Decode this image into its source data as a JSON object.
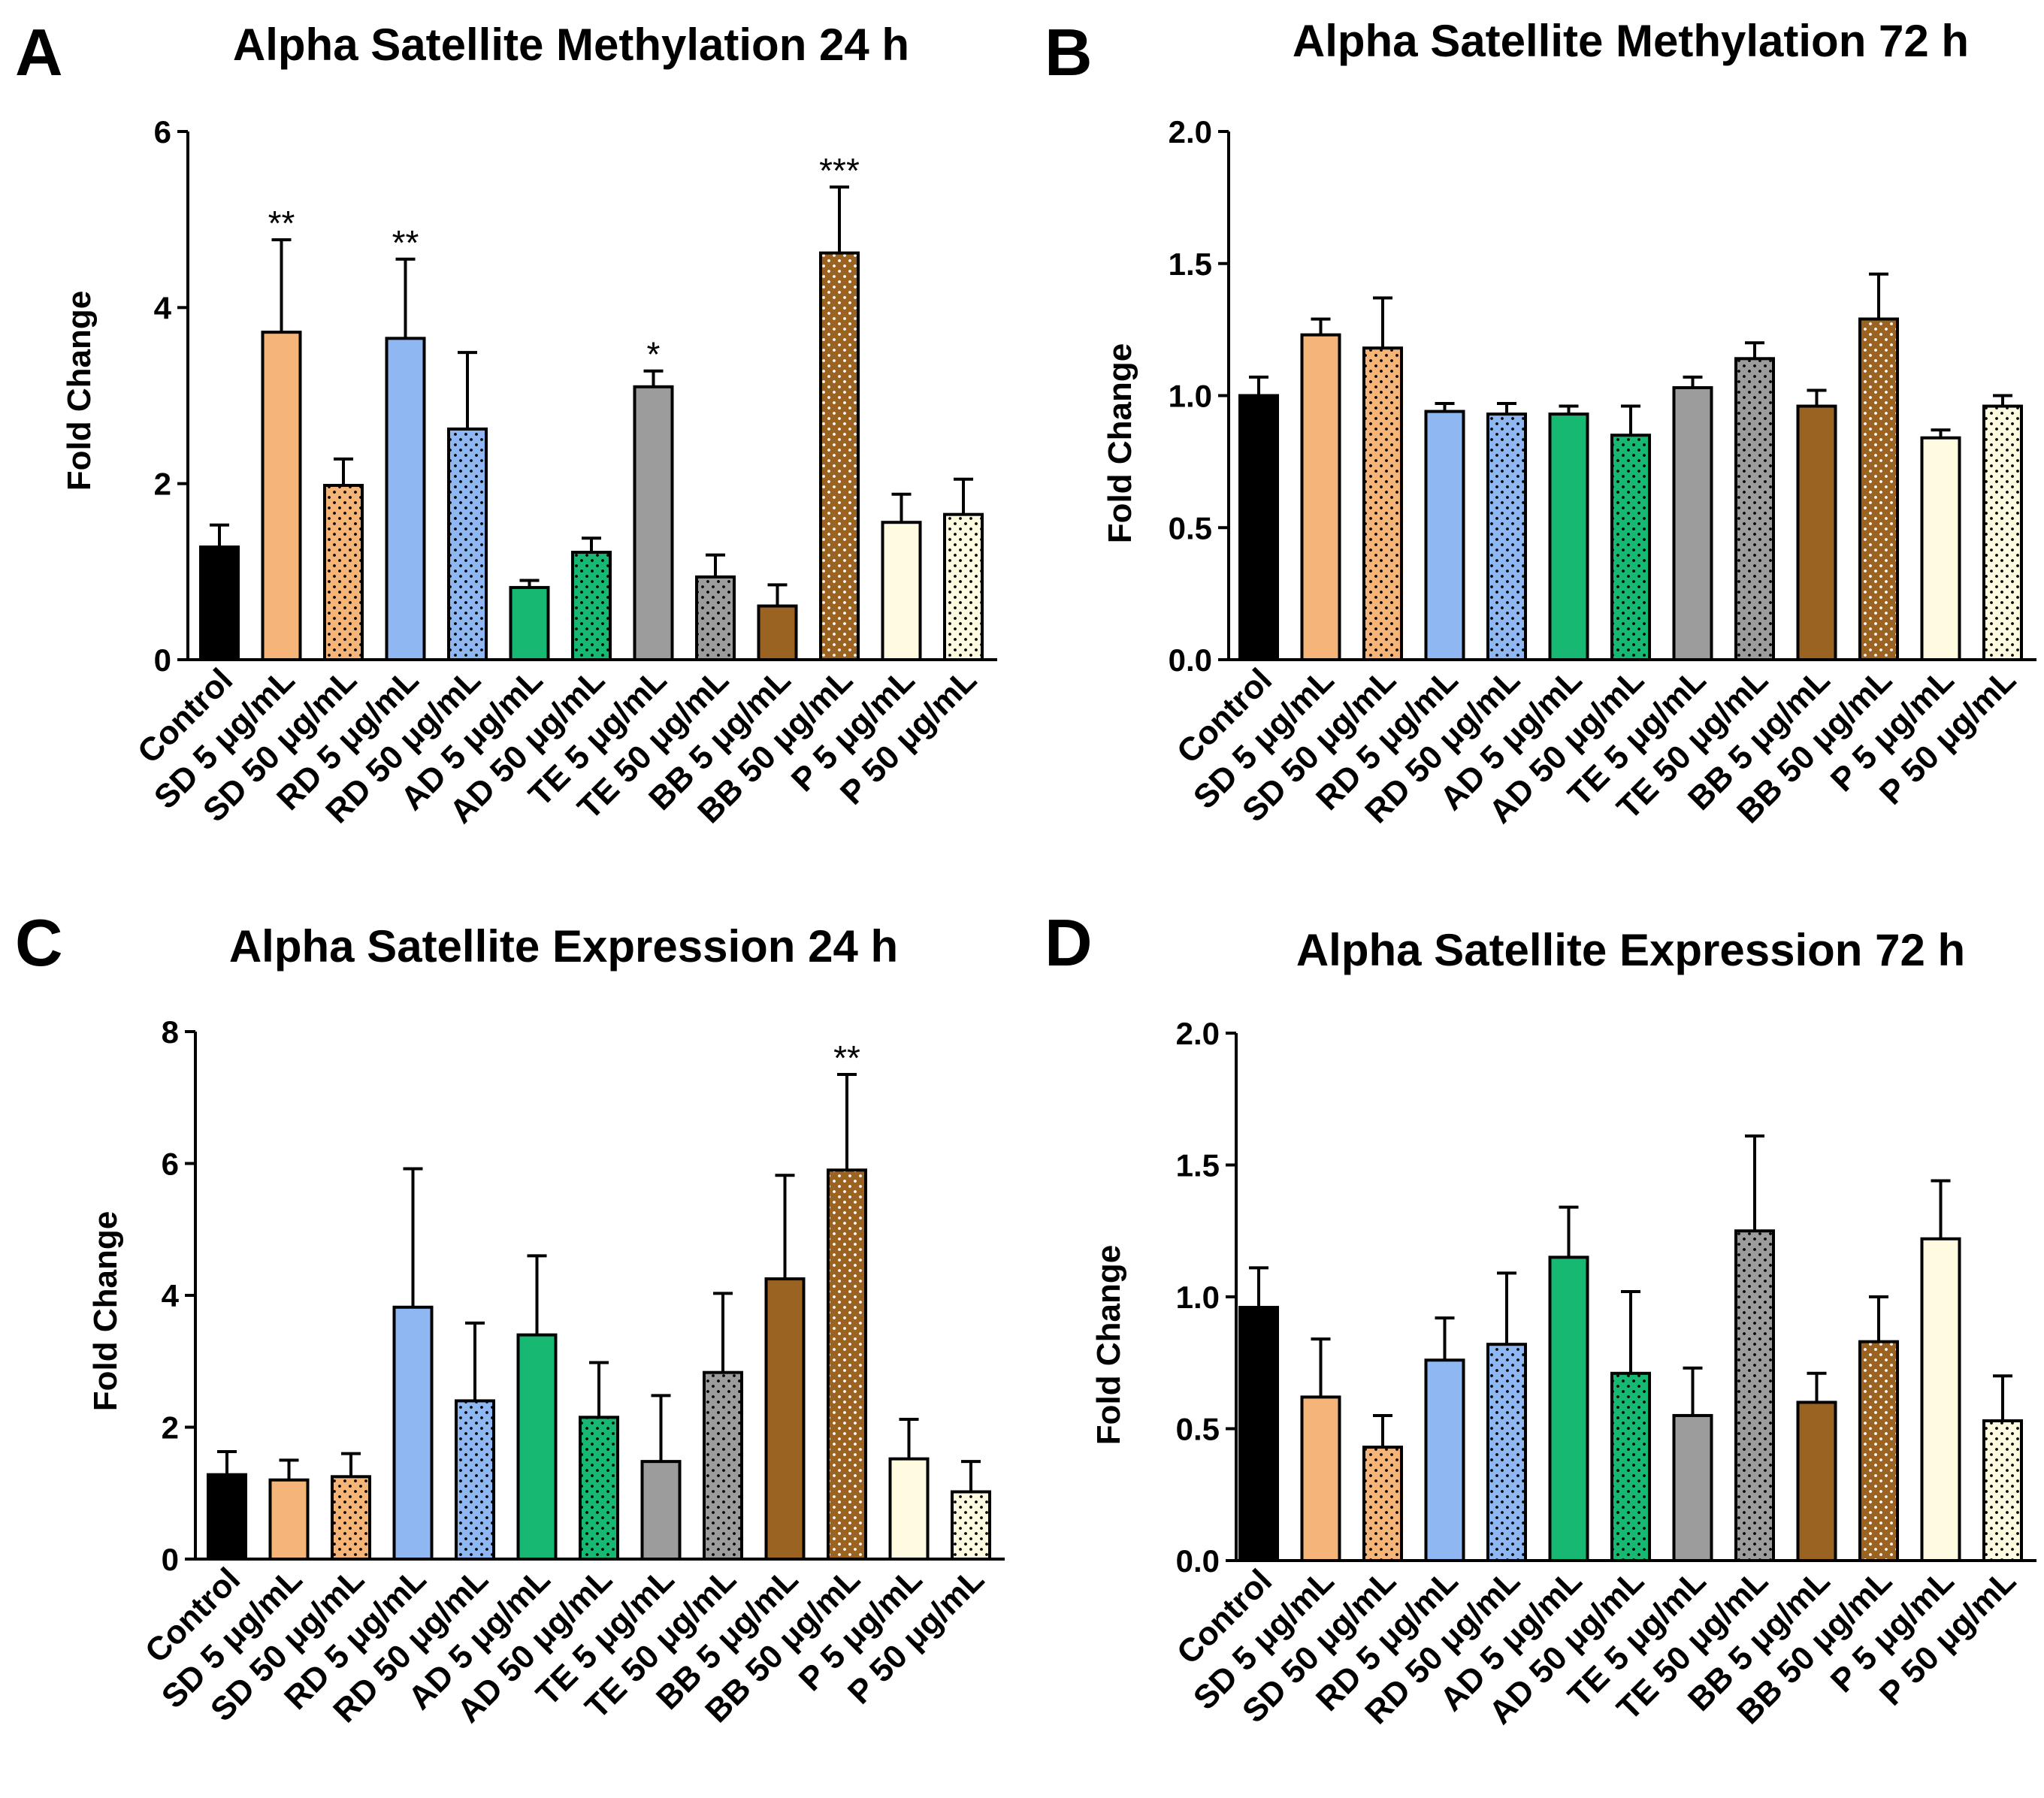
{
  "colors": {
    "Control": "#000000",
    "SD": "#f5b478",
    "RD": "#8fb8f3",
    "AD": "#16b872",
    "TE": "#9c9c9c",
    "BB": "#9a6322",
    "P": "#fffbe0"
  },
  "chart_data": [
    {
      "letter": "A",
      "type": "bar",
      "title": "Alpha Satellite Methylation 24 h",
      "ylabel": "Fold Change",
      "ylim": [
        0,
        6
      ],
      "yticks": [
        "0",
        "2",
        "4",
        "6"
      ],
      "categories": [
        "Control",
        "SD 5 μg/mL",
        "SD 50 μg/mL",
        "RD 5 μg/mL",
        "RD 50 μg/mL",
        "AD 5 μg/mL",
        "AD 50 μg/mL",
        "TE 5 μg/mL",
        "TE 50 μg/mL",
        "BB 5 μg/mL",
        "BB 50 μg/mL",
        "P 5 μg/mL",
        "P 50 μg/mL"
      ],
      "groups": [
        "Control",
        "SD",
        "SD",
        "RD",
        "RD",
        "AD",
        "AD",
        "TE",
        "TE",
        "BB",
        "BB",
        "P",
        "P"
      ],
      "dotted": [
        false,
        false,
        true,
        false,
        true,
        false,
        true,
        false,
        true,
        false,
        true,
        false,
        true
      ],
      "values": [
        1.28,
        3.72,
        1.98,
        3.65,
        2.62,
        0.82,
        1.22,
        3.1,
        0.94,
        0.61,
        4.62,
        1.56,
        1.65
      ],
      "errors": [
        0.25,
        1.05,
        0.3,
        0.9,
        0.87,
        0.08,
        0.16,
        0.18,
        0.25,
        0.24,
        0.75,
        0.32,
        0.4
      ],
      "significance": [
        "",
        "**",
        "",
        "**",
        "",
        "",
        "",
        "*",
        "",
        "",
        "***",
        "",
        ""
      ]
    },
    {
      "letter": "B",
      "type": "bar",
      "title": "Alpha Satellite Methylation 72 h",
      "ylabel": "Fold Change",
      "ylim": [
        0,
        2
      ],
      "yticks": [
        "0.0",
        "0.5",
        "1.0",
        "1.5",
        "2.0"
      ],
      "categories": [
        "Control",
        "SD 5 μg/mL",
        "SD 50 μg/mL",
        "RD 5 μg/mL",
        "RD 50 μg/mL",
        "AD 5 μg/mL",
        "AD 50 μg/mL",
        "TE 5 μg/mL",
        "TE 50 μg/mL",
        "BB 5 μg/mL",
        "BB 50 μg/mL",
        "P 5 μg/mL",
        "P 50 μg/mL"
      ],
      "groups": [
        "Control",
        "SD",
        "SD",
        "RD",
        "RD",
        "AD",
        "AD",
        "TE",
        "TE",
        "BB",
        "BB",
        "P",
        "P"
      ],
      "dotted": [
        false,
        false,
        true,
        false,
        true,
        false,
        true,
        false,
        true,
        false,
        true,
        false,
        true
      ],
      "values": [
        1.0,
        1.23,
        1.18,
        0.94,
        0.93,
        0.93,
        0.85,
        1.03,
        1.14,
        0.96,
        1.29,
        0.84,
        0.96
      ],
      "errors": [
        0.07,
        0.06,
        0.19,
        0.03,
        0.04,
        0.03,
        0.11,
        0.04,
        0.06,
        0.06,
        0.17,
        0.03,
        0.04
      ],
      "significance": [
        "",
        "",
        "",
        "",
        "",
        "",
        "",
        "",
        "",
        "",
        "",
        "",
        ""
      ]
    },
    {
      "letter": "C",
      "type": "bar",
      "title": "Alpha Satellite Expression 24 h",
      "ylabel": "Fold Change",
      "ylim": [
        0,
        8
      ],
      "yticks": [
        "0",
        "2",
        "4",
        "6",
        "8"
      ],
      "categories": [
        "Control",
        "SD 5 μg/mL",
        "SD 50 μg/mL",
        "RD 5 μg/mL",
        "RD 50 μg/mL",
        "AD 5 μg/mL",
        "AD 50 μg/mL",
        "TE 5 μg/mL",
        "TE 50 μg/mL",
        "BB 5 μg/mL",
        "BB 50 μg/mL",
        "P 5 μg/mL",
        "P 50 μg/mL"
      ],
      "groups": [
        "Control",
        "SD",
        "SD",
        "RD",
        "RD",
        "AD",
        "AD",
        "TE",
        "TE",
        "BB",
        "BB",
        "P",
        "P"
      ],
      "dotted": [
        false,
        false,
        true,
        false,
        true,
        false,
        true,
        false,
        true,
        false,
        true,
        false,
        true
      ],
      "values": [
        1.28,
        1.2,
        1.25,
        3.82,
        2.4,
        3.4,
        2.15,
        1.48,
        2.83,
        4.25,
        5.9,
        1.52,
        1.02
      ],
      "errors": [
        0.35,
        0.3,
        0.35,
        2.1,
        1.18,
        1.2,
        0.83,
        1.0,
        1.2,
        1.57,
        1.45,
        0.6,
        0.46
      ],
      "significance": [
        "",
        "",
        "",
        "",
        "",
        "",
        "",
        "",
        "",
        "",
        "**",
        "",
        ""
      ]
    },
    {
      "letter": "D",
      "type": "bar",
      "title": "Alpha Satellite Expression 72 h",
      "ylabel": "Fold Change",
      "ylim": [
        0,
        2
      ],
      "yticks": [
        "0.0",
        "0.5",
        "1.0",
        "1.5",
        "2.0"
      ],
      "categories": [
        "Control",
        "SD 5 μg/mL",
        "SD 50 μg/mL",
        "RD 5 μg/mL",
        "RD 50 μg/mL",
        "AD 5 μg/mL",
        "AD 50 μg/mL",
        "TE 5 μg/mL",
        "TE 50 μg/mL",
        "BB 5 μg/mL",
        "BB 50 μg/mL",
        "P 5 μg/mL",
        "P 50 μg/mL"
      ],
      "groups": [
        "Control",
        "SD",
        "SD",
        "RD",
        "RD",
        "AD",
        "AD",
        "TE",
        "TE",
        "BB",
        "BB",
        "P",
        "P"
      ],
      "dotted": [
        false,
        false,
        true,
        false,
        true,
        false,
        true,
        false,
        true,
        false,
        true,
        false,
        true
      ],
      "values": [
        0.96,
        0.62,
        0.43,
        0.76,
        0.82,
        1.15,
        0.71,
        0.55,
        1.25,
        0.6,
        0.83,
        1.22,
        0.53
      ],
      "errors": [
        0.15,
        0.22,
        0.12,
        0.16,
        0.27,
        0.19,
        0.31,
        0.18,
        0.36,
        0.11,
        0.17,
        0.22,
        0.17
      ],
      "significance": [
        "",
        "",
        "",
        "",
        "",
        "",
        "",
        "",
        "",
        "",
        "",
        "",
        ""
      ]
    }
  ]
}
